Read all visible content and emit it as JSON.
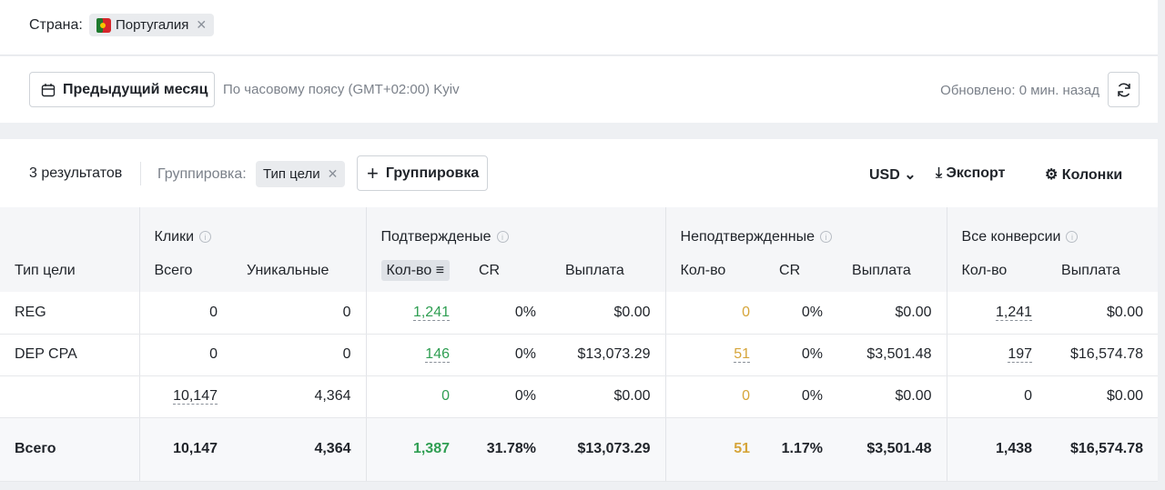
{
  "filter": {
    "label": "Страна:",
    "country": "Португалия"
  },
  "toolbar": {
    "period": "Предыдущий месяц",
    "timezone": "По часовому поясу (GMT+02:00) Kyiv",
    "updated": "Обновлено: 0 мин. назад"
  },
  "table_bar": {
    "results": "3 результатов",
    "grouping_label": "Группировка:",
    "grouping_chip": "Тип цели",
    "add_grouping": "Группировка",
    "currency": "USD",
    "export": "Экспорт",
    "columns": "Колонки"
  },
  "table": {
    "row_header": "Тип цели",
    "groups": [
      "Клики",
      "Подтвержденые",
      "Неподтвержденные",
      "Все конверсии"
    ],
    "columns": [
      "Всего",
      "Уникальные",
      "Кол-во",
      "CR",
      "Выплата",
      "Кол-во",
      "CR",
      "Выплата",
      "Кол-во",
      "Выплата"
    ],
    "rows": [
      [
        "REG",
        "0",
        "0",
        "1,241",
        "0%",
        "$0.00",
        "0",
        "0%",
        "$0.00",
        "1,241",
        "$0.00"
      ],
      [
        "DEP CPA",
        "0",
        "0",
        "146",
        "0%",
        "$13,073.29",
        "51",
        "0%",
        "$3,501.48",
        "197",
        "$16,574.78"
      ],
      [
        null,
        "10,147",
        "4,364",
        "0",
        "0%",
        "$0.00",
        "0",
        "0%",
        "$0.00",
        "0",
        "$0.00"
      ]
    ],
    "total": [
      "Всего",
      "10,147",
      "4,364",
      "1,387",
      "31.78%",
      "$13,073.29",
      "51",
      "1.17%",
      "$3,501.48",
      "1,438",
      "$16,574.78"
    ]
  }
}
